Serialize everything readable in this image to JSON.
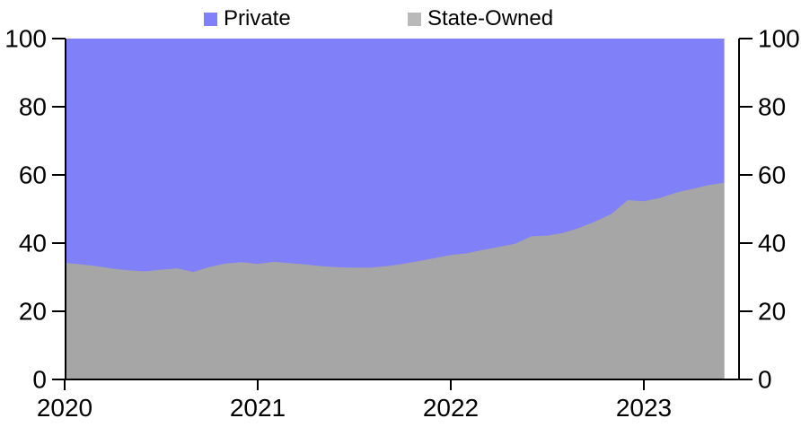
{
  "legend": [
    {
      "label": "Private",
      "color": "#8080f8"
    },
    {
      "label": "State-Owned",
      "color": "#b9b9b9"
    }
  ],
  "chart_data": {
    "type": "area",
    "stacked": true,
    "title": "",
    "xlabel": "",
    "ylabel": "",
    "ylim": [
      0,
      100
    ],
    "y_ticks": [
      0,
      20,
      40,
      60,
      80,
      100
    ],
    "y_axis_sides": [
      "left",
      "right"
    ],
    "x_ticks_years": [
      2020,
      2021,
      2022,
      2023
    ],
    "x_tick_labels": [
      "2020",
      "2021",
      "2022",
      "2023"
    ],
    "x_start": "2020-01",
    "x_end": "2023-06",
    "x_frequency": "monthly",
    "months": [
      "2020-01",
      "2020-02",
      "2020-03",
      "2020-04",
      "2020-05",
      "2020-06",
      "2020-07",
      "2020-08",
      "2020-09",
      "2020-10",
      "2020-11",
      "2020-12",
      "2021-01",
      "2021-02",
      "2021-03",
      "2021-04",
      "2021-05",
      "2021-06",
      "2021-07",
      "2021-08",
      "2021-09",
      "2021-10",
      "2021-11",
      "2021-12",
      "2022-01",
      "2022-02",
      "2022-03",
      "2022-04",
      "2022-05",
      "2022-06",
      "2022-07",
      "2022-08",
      "2022-09",
      "2022-10",
      "2022-11",
      "2022-12",
      "2023-01",
      "2023-02",
      "2023-03",
      "2023-04",
      "2023-05",
      "2023-06"
    ],
    "series": [
      {
        "name": "State-Owned",
        "color": "#a6a6a6",
        "values": [
          34.2,
          33.8,
          33.2,
          32.5,
          32.0,
          31.7,
          32.2,
          32.6,
          31.5,
          33.0,
          34.0,
          34.4,
          33.9,
          34.5,
          34.1,
          33.7,
          33.2,
          32.9,
          32.8,
          32.8,
          33.2,
          33.9,
          34.7,
          35.6,
          36.5,
          37.0,
          38.0,
          38.9,
          39.8,
          42.0,
          42.2,
          43.0,
          44.5,
          46.4,
          48.6,
          52.6,
          52.3,
          53.2,
          54.8,
          55.9,
          57.0,
          57.7
        ]
      },
      {
        "name": "Private",
        "color": "#8080f8",
        "values": [
          65.8,
          66.2,
          66.8,
          67.5,
          68.0,
          68.3,
          67.8,
          67.4,
          68.5,
          67.0,
          66.0,
          65.6,
          66.1,
          65.5,
          65.9,
          66.3,
          66.8,
          67.1,
          67.2,
          67.2,
          66.8,
          66.1,
          65.3,
          64.4,
          63.5,
          63.0,
          62.0,
          61.1,
          60.2,
          58.0,
          57.8,
          57.0,
          55.5,
          53.6,
          51.4,
          47.4,
          47.7,
          46.8,
          45.2,
          44.1,
          43.0,
          42.3
        ]
      }
    ],
    "legend_position": "top",
    "grid": false,
    "axis_color": "#000000"
  }
}
